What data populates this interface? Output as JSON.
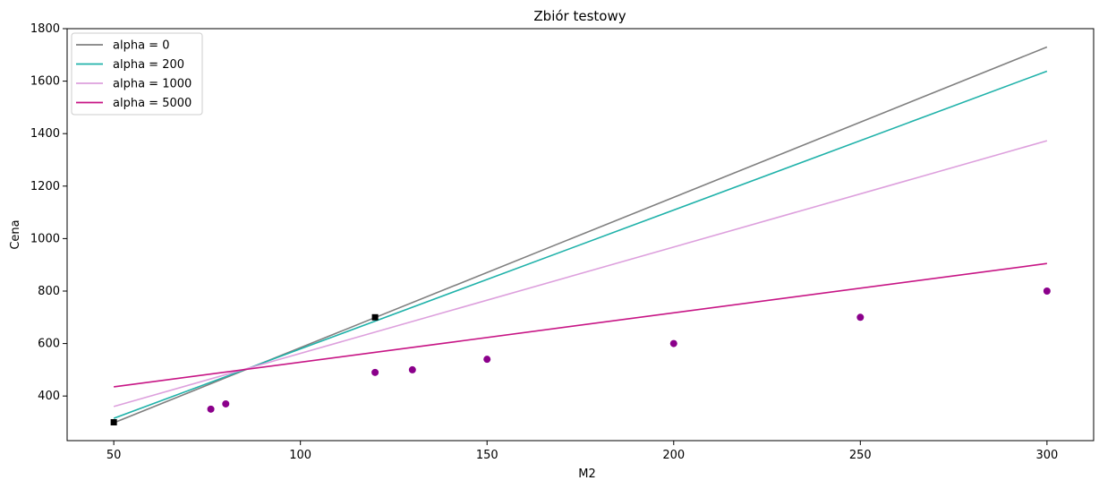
{
  "chart_data": {
    "type": "line",
    "title": "Zbiór testowy",
    "xlabel": "M2",
    "ylabel": "Cena",
    "xlim": [
      37.5,
      312.5
    ],
    "ylim": [
      230,
      1800
    ],
    "xticks": [
      50,
      100,
      150,
      200,
      250,
      300
    ],
    "yticks": [
      400,
      600,
      800,
      1000,
      1200,
      1400,
      1600,
      1800
    ],
    "grid": false,
    "legend_position": "upper-left",
    "series": [
      {
        "name": "alpha = 0",
        "color": "#808080",
        "x": [
          50,
          300
        ],
        "y": [
          298,
          1730
        ]
      },
      {
        "name": "alpha = 200",
        "color": "#20b2aa",
        "x": [
          50,
          300
        ],
        "y": [
          315,
          1638
        ]
      },
      {
        "name": "alpha = 1000",
        "color": "#dda0dd",
        "x": [
          50,
          300
        ],
        "y": [
          360,
          1373
        ]
      },
      {
        "name": "alpha = 5000",
        "color": "#c71585",
        "x": [
          50,
          300
        ],
        "y": [
          435,
          905
        ]
      }
    ],
    "scatter": {
      "color": "#8b008b",
      "points": [
        {
          "x": 76,
          "y": 350
        },
        {
          "x": 80,
          "y": 370
        },
        {
          "x": 120,
          "y": 490
        },
        {
          "x": 130,
          "y": 500
        },
        {
          "x": 150,
          "y": 540
        },
        {
          "x": 200,
          "y": 600
        },
        {
          "x": 250,
          "y": 700
        },
        {
          "x": 300,
          "y": 800
        }
      ]
    },
    "square_markers": {
      "color": "#000000",
      "points": [
        {
          "x": 50,
          "y": 300
        },
        {
          "x": 120,
          "y": 700
        }
      ]
    }
  }
}
